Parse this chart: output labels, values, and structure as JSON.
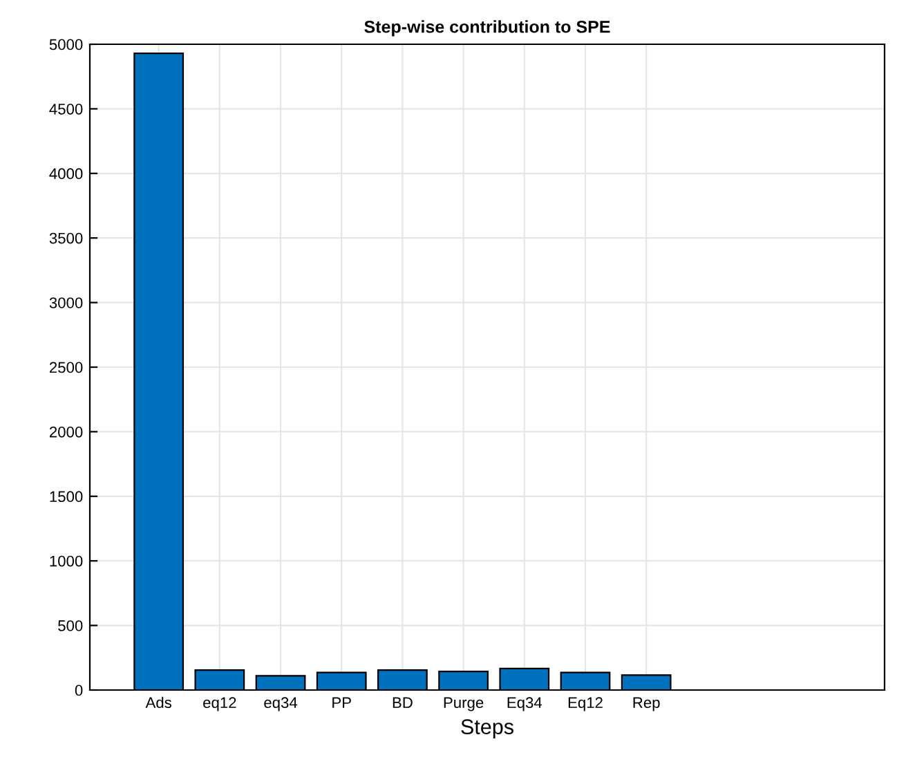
{
  "chart_data": {
    "type": "bar",
    "title": "Step-wise contribution to SPE",
    "xlabel": "Steps",
    "categories": [
      "Ads",
      "eq12",
      "eq34",
      "PP",
      "BD",
      "Purge",
      "Eq34",
      "Eq12",
      "Rep"
    ],
    "values": [
      4930,
      155,
      111,
      136,
      155,
      144,
      167,
      136,
      116
    ],
    "color": "#0072bd",
    "ylim": [
      0,
      5000
    ],
    "yticks": [
      0,
      500,
      1000,
      1500,
      2000,
      2500,
      3000,
      3500,
      4000,
      4500,
      5000
    ],
    "grid": true
  }
}
